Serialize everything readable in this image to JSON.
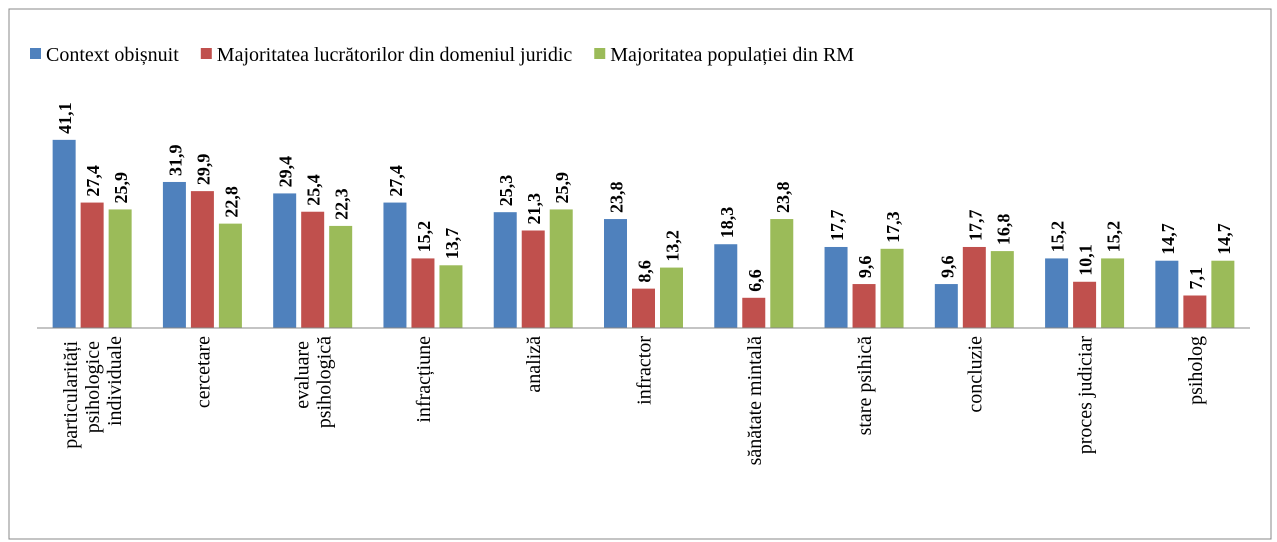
{
  "chart_data": {
    "type": "bar",
    "categories": [
      "particularități psihologice individuale",
      "cercetare",
      "evaluare psihologică",
      "infracțiune",
      "analiză",
      "infractor",
      "sănătate mintală",
      "stare psihică",
      "concluzie",
      "proces judiciar",
      "psiholog"
    ],
    "series": [
      {
        "name": "Context obișnuit",
        "color": "#4f81bd",
        "values": [
          41.1,
          31.9,
          29.4,
          27.4,
          25.3,
          23.8,
          18.3,
          17.7,
          9.6,
          15.2,
          14.7
        ],
        "value_labels": [
          "41,1",
          "31,9",
          "29,4",
          "27,4",
          "25,3",
          "23,8",
          "18,3",
          "17,7",
          "9,6",
          "15,2",
          "14,7"
        ]
      },
      {
        "name": "Majoritatea lucrătorilor din domeniul juridic",
        "color": "#c0504d",
        "values": [
          27.4,
          29.9,
          25.4,
          15.2,
          21.3,
          8.6,
          6.6,
          9.6,
          17.7,
          10.1,
          7.1
        ],
        "value_labels": [
          "27,4",
          "29,9",
          "25,4",
          "15,2",
          "21,3",
          "8,6",
          "6,6",
          "9,6",
          "17,7",
          "10,1",
          "7,1"
        ]
      },
      {
        "name": "Majoritatea populației din RM",
        "color": "#9bbb59",
        "values": [
          25.9,
          22.8,
          22.3,
          13.7,
          25.9,
          13.2,
          23.8,
          17.3,
          16.8,
          15.2,
          14.7
        ],
        "value_labels": [
          "25,9",
          "22,8",
          "22,3",
          "13,7",
          "25,9",
          "13,2",
          "23,8",
          "17,3",
          "16,8",
          "15,2",
          "14,7"
        ]
      }
    ],
    "ylim": [
      0,
      45
    ],
    "legend": "top"
  }
}
